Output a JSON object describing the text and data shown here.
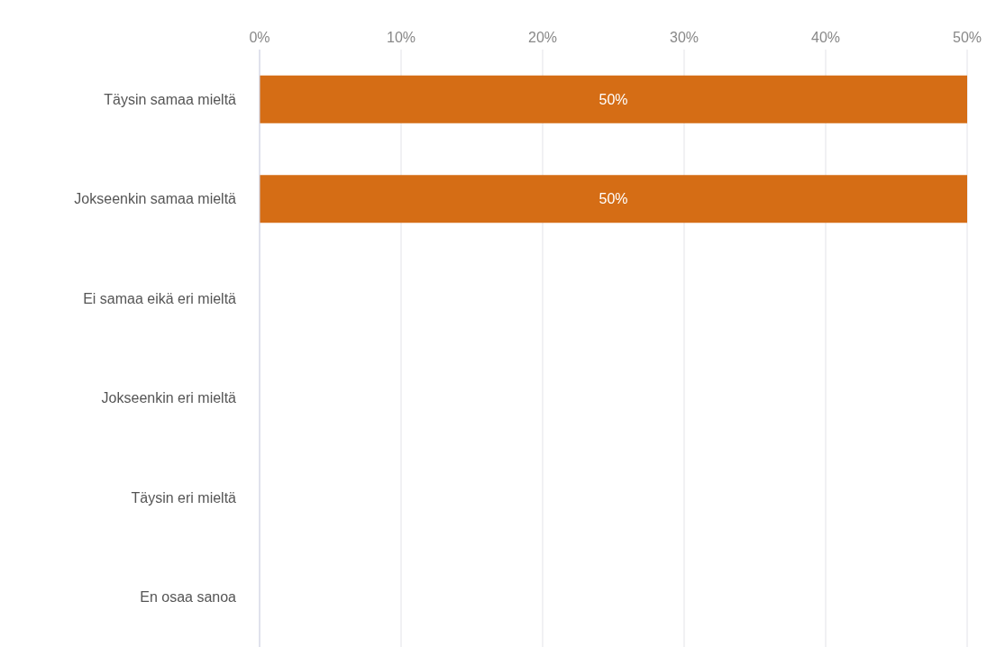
{
  "chart_data": {
    "type": "bar",
    "orientation": "horizontal",
    "categories": [
      "Täysin samaa mieltä",
      "Jokseenkin samaa mieltä",
      "Ei samaa eikä eri mieltä",
      "Jokseenkin eri mieltä",
      "Täysin eri mieltä",
      "En osaa sanoa"
    ],
    "values": [
      50,
      50,
      0,
      0,
      0,
      0
    ],
    "value_labels": [
      "50%",
      "50%",
      null,
      null,
      null,
      null
    ],
    "color": "#d56d15",
    "xlim": [
      0,
      50
    ],
    "xticks": [
      {
        "value": 0,
        "label": "0%"
      },
      {
        "value": 10,
        "label": "10%"
      },
      {
        "value": 20,
        "label": "20%"
      },
      {
        "value": 30,
        "label": "30%"
      },
      {
        "value": 40,
        "label": "40%"
      },
      {
        "value": 50,
        "label": "50%"
      }
    ],
    "grid": "x",
    "legend": false
  }
}
